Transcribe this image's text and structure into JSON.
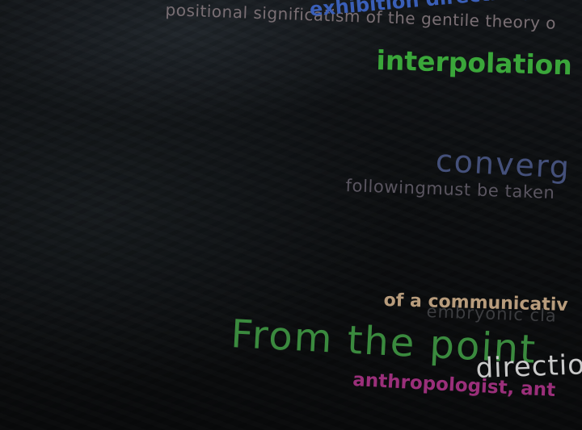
{
  "phrases": {
    "positional": {
      "text": "positional significatism of the gentile theory o",
      "color": "#7a6f74"
    },
    "exhibition": {
      "text": "exhibition direction, or",
      "color": "#3a5fb8"
    },
    "catism": {
      "text": "",
      "color": "#8a8f84"
    },
    "interpolation": {
      "text": "interpolation a",
      "color": "#3aa63a"
    },
    "converg": {
      "text": "converg",
      "color": "#44507a"
    },
    "following": {
      "text": "followingmust be taken",
      "color": "#5a5560"
    },
    "embryonic": {
      "text": "embryonic cla",
      "color": "#3c3d40"
    },
    "communicative": {
      "text": "of a communicativ",
      "color": "#b89c7c"
    },
    "from": {
      "text": "From the point",
      "color": "#3a8a3e"
    },
    "direction": {
      "text": "directio",
      "color": "#c9c9c9"
    },
    "anthropologist": {
      "text": "anthropologist, ant",
      "color": "#9a2f7a"
    }
  }
}
